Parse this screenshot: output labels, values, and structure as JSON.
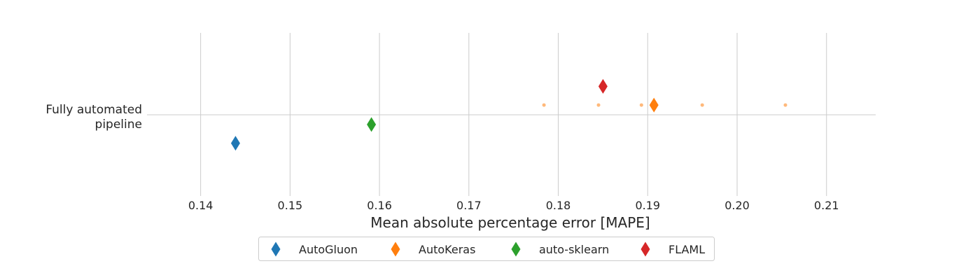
{
  "chart_data": {
    "type": "scatter",
    "xlabel": "Mean absolute percentage error [MAPE]",
    "categories": [
      "Fully automated",
      "pipeline"
    ],
    "xlim": [
      0.134,
      0.2155
    ],
    "xticks": [
      0.14,
      0.15,
      0.16,
      0.17,
      0.18,
      0.19,
      0.2,
      0.21
    ],
    "xtick_labels": [
      "0.14",
      "0.15",
      "0.16",
      "0.17",
      "0.18",
      "0.19",
      "0.20",
      "0.21"
    ],
    "grid": true,
    "legend_position": "bottom-center",
    "series": [
      {
        "name": "AutoGluon",
        "color": "#1f77b4",
        "values": [
          0.1439
        ],
        "offset": 0.35,
        "runs": []
      },
      {
        "name": "AutoKeras",
        "color": "#ff7f0e",
        "values": [
          0.1907
        ],
        "offset": -0.12,
        "runs": [
          0.1784,
          0.1845,
          0.1893,
          0.1961,
          0.2054
        ]
      },
      {
        "name": "auto-sklearn",
        "color": "#2ca02c",
        "values": [
          0.1591
        ],
        "offset": 0.12,
        "runs": []
      },
      {
        "name": "FLAML",
        "color": "#d62728",
        "values": [
          0.185
        ],
        "offset": -0.35,
        "runs": []
      }
    ]
  }
}
